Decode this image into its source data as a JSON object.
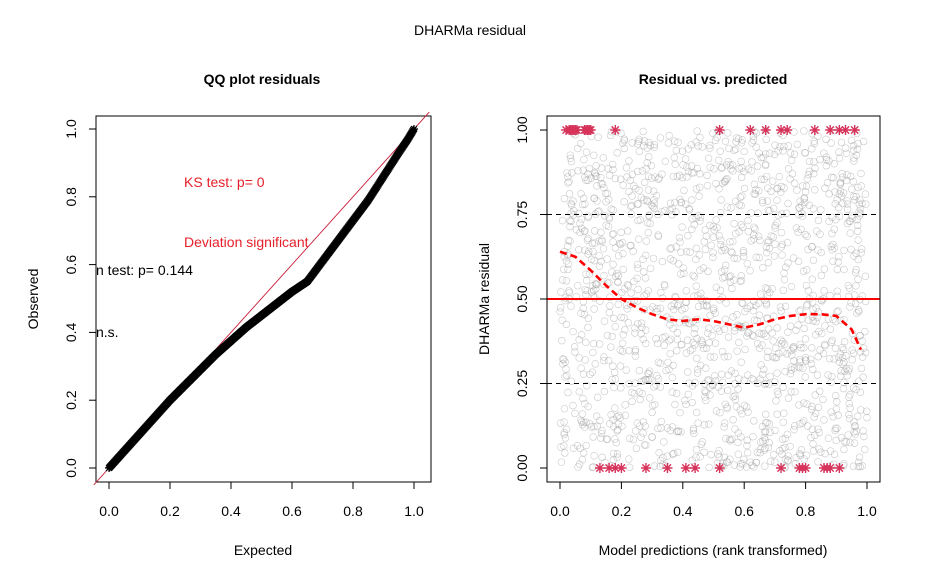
{
  "figure": {
    "title": "DHARMa residual"
  },
  "chart_data": [
    {
      "type": "scatter",
      "title": "QQ plot residuals",
      "xlabel": "Expected",
      "ylabel": "Observed",
      "xlim": [
        0,
        1
      ],
      "ylim": [
        0,
        1
      ],
      "xticks": [
        "0.0",
        "0.2",
        "0.4",
        "0.6",
        "0.8",
        "1.0"
      ],
      "yticks": [
        "0.0",
        "0.2",
        "0.4",
        "0.6",
        "0.8",
        "1.0"
      ],
      "series": [
        {
          "name": "",
          "color": "#000000",
          "x": [
            0.0,
            0.05,
            0.1,
            0.15,
            0.2,
            0.25,
            0.3,
            0.35,
            0.4,
            0.45,
            0.5,
            0.55,
            0.6,
            0.65,
            0.7,
            0.75,
            0.8,
            0.85,
            0.9,
            0.95,
            0.98,
            1.0
          ],
          "y": [
            0.0,
            0.05,
            0.1,
            0.15,
            0.2,
            0.245,
            0.29,
            0.335,
            0.375,
            0.415,
            0.45,
            0.485,
            0.52,
            0.55,
            0.61,
            0.67,
            0.73,
            0.79,
            0.86,
            0.93,
            0.97,
            1.0
          ]
        }
      ],
      "reference_line": {
        "color": "#cc1f3c",
        "from": [
          -0.05,
          -0.05
        ],
        "to": [
          1.05,
          1.05
        ]
      },
      "annotations": [
        {
          "text": "KS test: p= 0",
          "color": "#e6202a"
        },
        {
          "text": "Deviation  significant",
          "color": "#e6202a"
        },
        {
          "text": "n test: p= 0.144",
          "color": "#000000"
        },
        {
          "text": "n.s.",
          "color": "#000000"
        }
      ]
    },
    {
      "type": "scatter",
      "title": "Residual vs. predicted",
      "xlabel": "Model predictions (rank transformed)",
      "ylabel": "DHARMa residual",
      "xlim": [
        0,
        1
      ],
      "ylim": [
        0,
        1
      ],
      "xticks": [
        "0.0",
        "0.2",
        "0.4",
        "0.6",
        "0.8",
        "1.0"
      ],
      "yticks": [
        "0.00",
        "0.25",
        "0.50",
        "0.75",
        "1.00"
      ],
      "points_color": "#9e9e9e",
      "hlines": [
        {
          "y": 0.25,
          "style": "dashed",
          "color": "#000000"
        },
        {
          "y": 0.5,
          "style": "solid",
          "color": "#ff0000"
        },
        {
          "y": 0.75,
          "style": "dashed",
          "color": "#000000"
        }
      ],
      "smooth_curve": {
        "color": "#ff0000",
        "style": "dashed",
        "x": [
          0.0,
          0.05,
          0.1,
          0.15,
          0.2,
          0.25,
          0.3,
          0.35,
          0.4,
          0.45,
          0.5,
          0.55,
          0.6,
          0.65,
          0.7,
          0.75,
          0.8,
          0.85,
          0.9,
          0.95,
          0.98
        ],
        "y": [
          0.64,
          0.625,
          0.585,
          0.54,
          0.5,
          0.475,
          0.455,
          0.44,
          0.435,
          0.44,
          0.435,
          0.425,
          0.415,
          0.425,
          0.44,
          0.45,
          0.455,
          0.455,
          0.45,
          0.41,
          0.35
        ]
      },
      "outliers": {
        "color": "#d6335b",
        "top_x": [
          0.02,
          0.03,
          0.035,
          0.04,
          0.045,
          0.05,
          0.055,
          0.08,
          0.085,
          0.09,
          0.095,
          0.1,
          0.18,
          0.52,
          0.62,
          0.67,
          0.72,
          0.74,
          0.83,
          0.88,
          0.91,
          0.93,
          0.96
        ],
        "top_y": 1.0,
        "bottom_x": [
          0.13,
          0.16,
          0.18,
          0.2,
          0.28,
          0.35,
          0.41,
          0.44,
          0.52,
          0.72,
          0.78,
          0.79,
          0.8,
          0.86,
          0.87,
          0.88,
          0.91
        ],
        "bottom_y": 0.0
      }
    }
  ]
}
